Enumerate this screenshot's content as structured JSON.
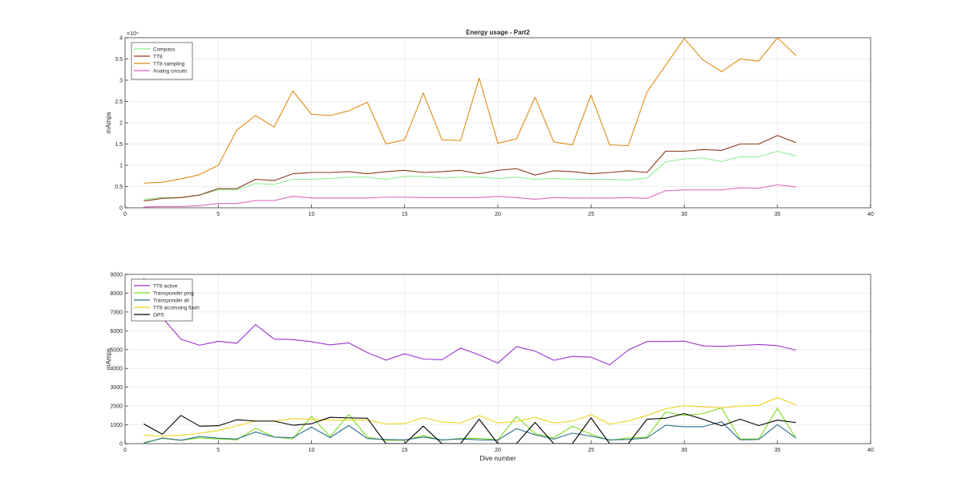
{
  "chart_data": [
    {
      "type": "line",
      "title": "Energy usage - Part2",
      "xlabel": "",
      "ylabel": "mAmps",
      "y_exponent_label": "×10⁴",
      "xlim": [
        0,
        40
      ],
      "ylim": [
        0,
        4
      ],
      "xticks": [
        0,
        5,
        10,
        15,
        20,
        25,
        30,
        35,
        40
      ],
      "yticks": [
        0,
        0.5,
        1,
        1.5,
        2,
        2.5,
        3,
        3.5,
        4
      ],
      "ytick_labels": [
        "0",
        "0.5",
        "1",
        "1.5",
        "2",
        "2.5",
        "3",
        "3.5",
        "4"
      ],
      "grid": true,
      "legend_position": "top-left",
      "x": [
        1,
        2,
        3,
        4,
        5,
        6,
        7,
        8,
        9,
        10,
        11,
        12,
        13,
        14,
        15,
        16,
        17,
        18,
        19,
        20,
        21,
        22,
        23,
        24,
        25,
        26,
        27,
        28,
        29,
        30,
        31,
        32,
        33,
        34,
        35,
        36
      ],
      "series": [
        {
          "name": "Compass",
          "color": "#90ee90",
          "values": [
            0.2,
            0.24,
            0.24,
            0.3,
            0.42,
            0.42,
            0.57,
            0.55,
            0.67,
            0.67,
            0.69,
            0.72,
            0.72,
            0.67,
            0.74,
            0.74,
            0.7,
            0.72,
            0.72,
            0.69,
            0.72,
            0.67,
            0.69,
            0.67,
            0.67,
            0.67,
            0.65,
            0.7,
            1.08,
            1.15,
            1.17,
            1.09,
            1.2,
            1.2,
            1.33,
            1.22
          ]
        },
        {
          "name": "TT8",
          "color": "#8b3a1a",
          "values": [
            0.16,
            0.22,
            0.24,
            0.3,
            0.45,
            0.45,
            0.67,
            0.64,
            0.8,
            0.83,
            0.83,
            0.85,
            0.8,
            0.85,
            0.88,
            0.83,
            0.85,
            0.88,
            0.8,
            0.88,
            0.92,
            0.77,
            0.87,
            0.85,
            0.8,
            0.83,
            0.87,
            0.83,
            1.33,
            1.33,
            1.37,
            1.35,
            1.5,
            1.5,
            1.7,
            1.53
          ]
        },
        {
          "name": "TT8 sampling",
          "color": "#e08a14",
          "values": [
            0.58,
            0.6,
            0.68,
            0.78,
            1.0,
            1.83,
            2.17,
            1.9,
            2.75,
            2.2,
            2.17,
            2.28,
            2.48,
            1.5,
            1.6,
            2.7,
            1.6,
            1.58,
            3.05,
            1.52,
            1.62,
            2.6,
            1.55,
            1.48,
            2.65,
            1.48,
            1.46,
            2.72,
            3.35,
            3.98,
            3.48,
            3.2,
            3.5,
            3.45,
            4.0,
            3.58
          ]
        },
        {
          "name": "Analog circuits",
          "color": "#e066c0",
          "values": [
            0.02,
            0.03,
            0.03,
            0.05,
            0.1,
            0.1,
            0.17,
            0.17,
            0.27,
            0.23,
            0.23,
            0.23,
            0.23,
            0.25,
            0.25,
            0.24,
            0.24,
            0.24,
            0.24,
            0.27,
            0.24,
            0.2,
            0.24,
            0.23,
            0.23,
            0.23,
            0.24,
            0.22,
            0.4,
            0.42,
            0.42,
            0.42,
            0.47,
            0.46,
            0.54,
            0.49
          ]
        }
      ]
    },
    {
      "type": "line",
      "title": "",
      "xlabel": "Dive number",
      "ylabel": "mAmps",
      "xlim": [
        0,
        40
      ],
      "ylim": [
        0,
        9000
      ],
      "xticks": [
        0,
        5,
        10,
        15,
        20,
        25,
        30,
        35,
        40
      ],
      "yticks": [
        0,
        1000,
        2000,
        3000,
        4000,
        5000,
        6000,
        7000,
        8000,
        9000
      ],
      "ytick_labels": [
        "0",
        "1000",
        "2000",
        "3000",
        "4000",
        "5000",
        "6000",
        "7000",
        "8000",
        "9000"
      ],
      "grid": true,
      "legend_position": "top-left",
      "x": [
        1,
        2,
        3,
        4,
        5,
        6,
        7,
        8,
        9,
        10,
        11,
        12,
        13,
        14,
        15,
        16,
        17,
        18,
        19,
        20,
        21,
        22,
        23,
        24,
        25,
        26,
        27,
        28,
        29,
        30,
        31,
        32,
        33,
        34,
        35,
        36
      ],
      "series": [
        {
          "name": "TT8 active",
          "color": "#9932cc",
          "values": [
            8800,
            6700,
            5550,
            5230,
            5440,
            5340,
            6330,
            5560,
            5530,
            5420,
            5250,
            5360,
            4840,
            4440,
            4780,
            4500,
            4460,
            5080,
            4720,
            4280,
            5160,
            4920,
            4430,
            4640,
            4600,
            4190,
            4980,
            5430,
            5430,
            5450,
            5200,
            5170,
            5220,
            5270,
            5210,
            4970
          ]
        },
        {
          "name": "Transponder ping",
          "color": "#7ddc1f",
          "values": [
            50,
            280,
            180,
            300,
            250,
            200,
            820,
            350,
            250,
            1450,
            380,
            1550,
            340,
            180,
            180,
            430,
            180,
            280,
            280,
            200,
            1450,
            530,
            310,
            930,
            500,
            180,
            300,
            350,
            1680,
            1500,
            1600,
            1900,
            250,
            250,
            1880,
            280
          ]
        },
        {
          "name": "Transponder all",
          "color": "#2f6e8e",
          "values": [
            20,
            300,
            180,
            380,
            290,
            250,
            620,
            350,
            320,
            880,
            320,
            960,
            270,
            220,
            200,
            350,
            200,
            250,
            200,
            190,
            800,
            470,
            240,
            560,
            400,
            200,
            220,
            300,
            980,
            900,
            900,
            1160,
            200,
            220,
            1010,
            300
          ]
        },
        {
          "name": "TT8 accessing flash",
          "color": "#f0d21c",
          "values": [
            450,
            400,
            450,
            550,
            700,
            950,
            1200,
            1200,
            1330,
            1300,
            1250,
            1250,
            1250,
            1050,
            1070,
            1380,
            1150,
            1100,
            1500,
            1100,
            1180,
            1400,
            1100,
            1200,
            1540,
            1040,
            1200,
            1500,
            1850,
            2020,
            1960,
            1900,
            2000,
            2030,
            2450,
            2060
          ]
        },
        {
          "name": "GPS",
          "color": "#000000",
          "values": [
            1050,
            500,
            1500,
            930,
            950,
            1270,
            1200,
            1200,
            980,
            1060,
            1400,
            1370,
            1350,
            0,
            0,
            930,
            0,
            0,
            1300,
            0,
            0,
            1130,
            0,
            0,
            1370,
            0,
            0,
            1300,
            1350,
            1600,
            1300,
            950,
            1300,
            960,
            1250,
            1120
          ]
        }
      ]
    }
  ]
}
